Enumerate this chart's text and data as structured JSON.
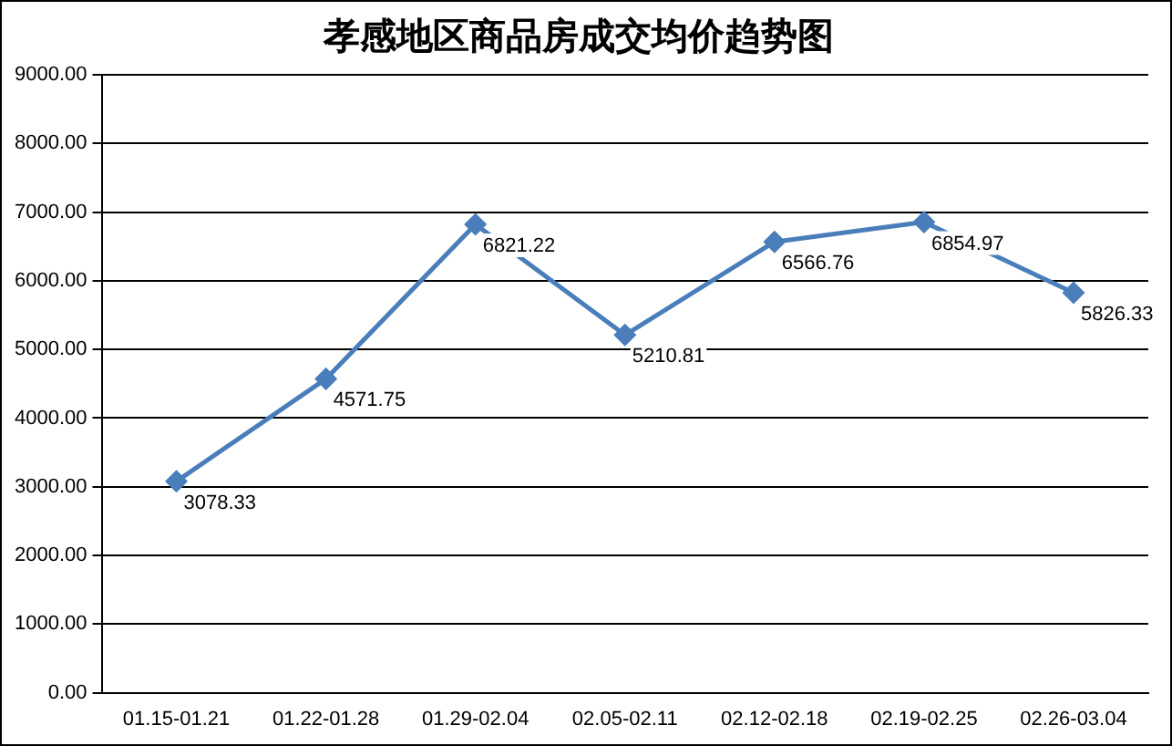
{
  "chart_data": {
    "type": "line",
    "title": "孝感地区商品房成交均价趋势图",
    "categories": [
      "01.15-01.21",
      "01.22-01.28",
      "01.29-02.04",
      "02.05-02.11",
      "02.12-02.18",
      "02.19-02.25",
      "02.26-03.04"
    ],
    "series": [
      {
        "color": "#4a7ebb",
        "values": [
          3078.33,
          4571.75,
          6821.22,
          5210.81,
          6566.76,
          6854.97,
          5826.33
        ]
      }
    ],
    "ylim": [
      0,
      9000
    ],
    "yticks": [
      {
        "value": 0,
        "label": "0.00"
      },
      {
        "value": 1000,
        "label": "1000.00"
      },
      {
        "value": 2000,
        "label": "2000.00"
      },
      {
        "value": 3000,
        "label": "3000.00"
      },
      {
        "value": 4000,
        "label": "4000.00"
      },
      {
        "value": 5000,
        "label": "5000.00"
      },
      {
        "value": 6000,
        "label": "6000.00"
      },
      {
        "value": 7000,
        "label": "7000.00"
      },
      {
        "value": 8000,
        "label": "8000.00"
      },
      {
        "value": 9000,
        "label": "9000.00"
      }
    ],
    "grid": "y",
    "legend": false,
    "marker": "diamond",
    "line_style": "solid",
    "data_labels": true
  }
}
